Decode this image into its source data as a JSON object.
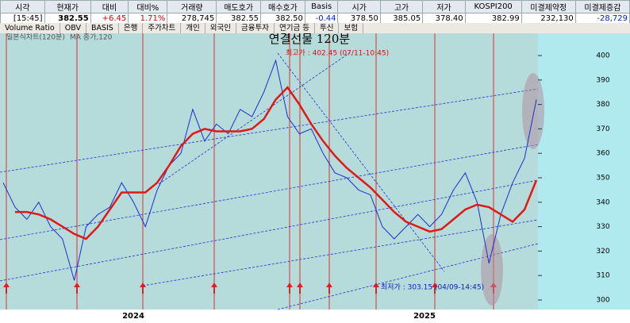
{
  "quote_table": {
    "headers": [
      "시각",
      "현재가",
      "대비",
      "대비%",
      "거래량",
      "매도호가",
      "매수호가",
      "Basis",
      "시가",
      "고가",
      "저가",
      "KOSPI200",
      "미결제약정",
      "미결제증감"
    ],
    "values": [
      "[15:45]",
      "382.55",
      "+6.45",
      "1.71%",
      "278,745",
      "382.55",
      "382.50",
      "-0.44",
      "378.50",
      "385.05",
      "378.40",
      "382.99",
      "232,130",
      "-28,729"
    ]
  },
  "tabs": [
    "Volume Ratio",
    "OBV",
    "BASIS",
    "은행",
    "주가차트",
    "개인",
    "외국인",
    "금융투자",
    "연기금 등",
    "투신",
    "보험"
  ],
  "chart_data": {
    "type": "line",
    "title": "연결선물 120분",
    "legend": [
      "일본식차트(120분)",
      "MA 종가,120"
    ],
    "annotations": [
      "최고가 : 402.45 (07/11-10:45)",
      "최저가 : 303.15 (04/09-14:45)"
    ],
    "year_labels": [
      "2024",
      "2025"
    ],
    "ylim": [
      296.1,
      409.1
    ],
    "yticks": [
      300,
      310,
      320,
      330,
      340,
      350,
      360,
      370,
      380,
      390,
      400
    ],
    "series": [
      {
        "name": "일본식차트(120분)",
        "color": "#1a2fd0",
        "values": [
          348,
          338,
          333,
          340,
          330,
          325,
          308,
          330,
          335,
          338,
          348,
          340,
          330,
          345,
          355,
          360,
          378,
          365,
          372,
          368,
          378,
          375,
          385,
          398,
          375,
          368,
          370,
          360,
          352,
          350,
          345,
          343,
          330,
          325,
          330,
          335,
          330,
          335,
          345,
          352,
          340,
          315,
          335,
          348,
          358,
          382
        ]
      },
      {
        "name": "MA 종가,120",
        "color": "#e01818",
        "values": [
          null,
          336,
          336,
          335,
          333,
          330,
          327,
          325,
          330,
          337,
          344,
          344,
          344,
          348,
          355,
          363,
          368,
          370,
          369,
          369,
          369,
          370,
          374,
          382,
          387,
          380,
          372,
          365,
          359,
          354,
          350,
          346,
          341,
          336,
          332,
          330,
          328,
          329,
          333,
          337,
          339,
          338,
          335,
          332,
          337,
          349
        ]
      }
    ]
  }
}
